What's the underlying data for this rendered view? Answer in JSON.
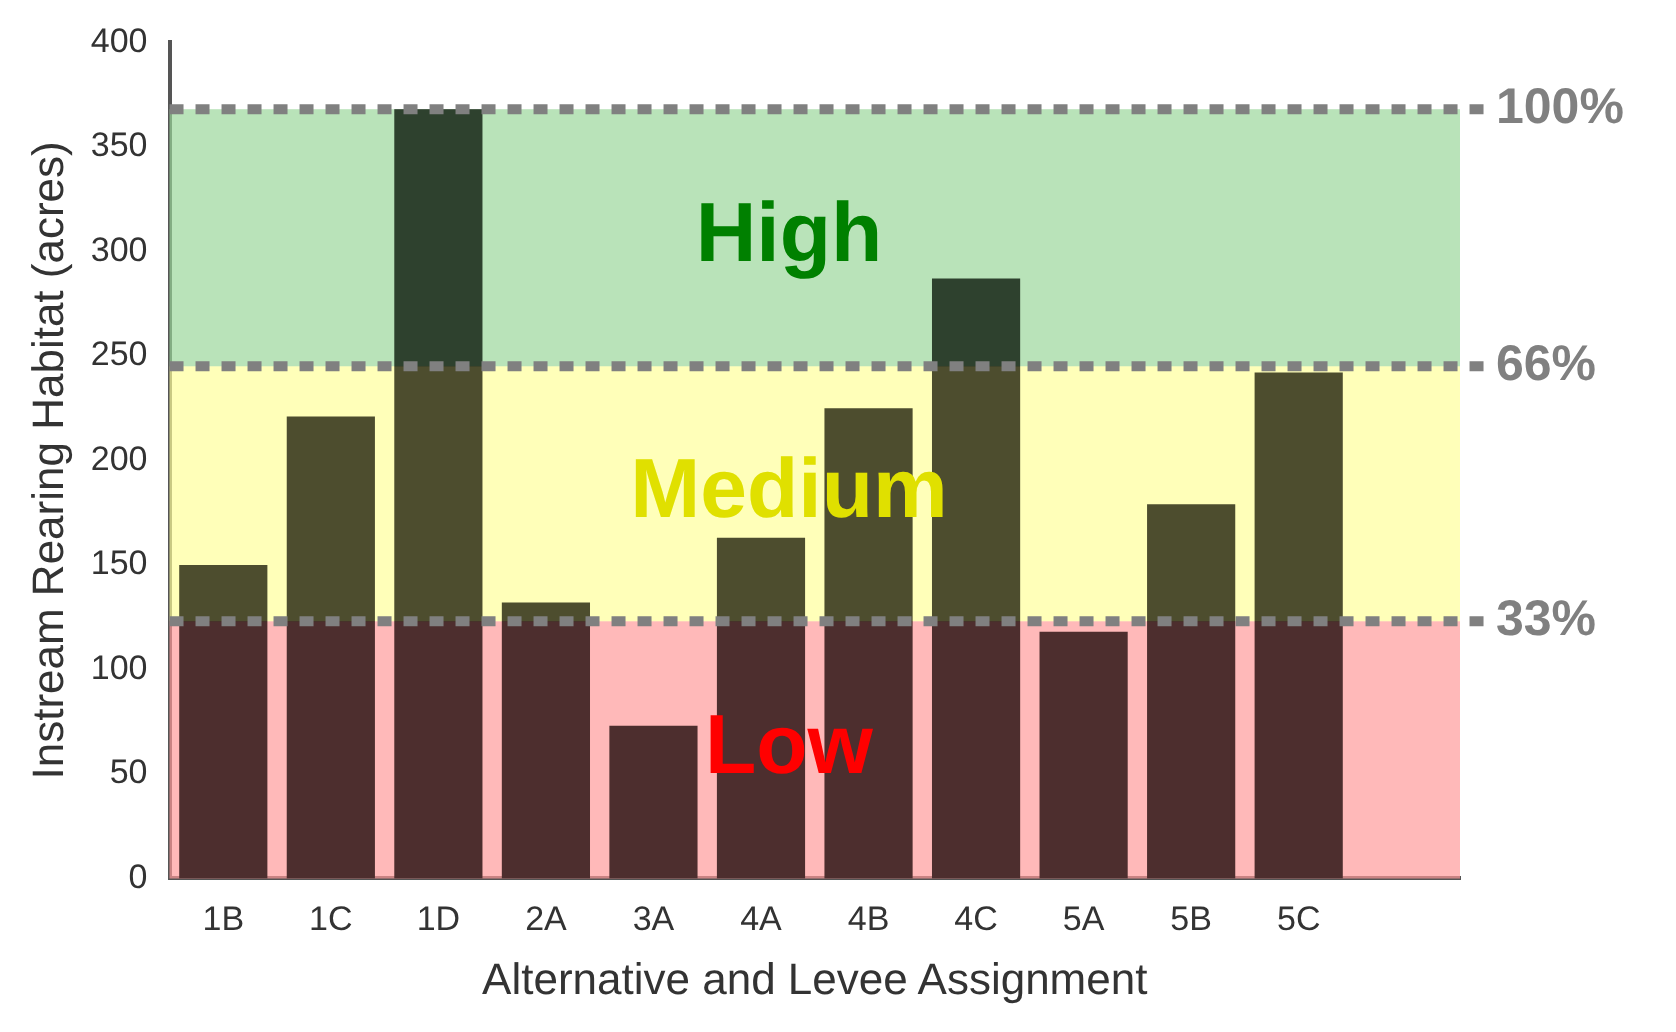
{
  "chart_data": {
    "type": "bar",
    "xlabel": "Alternative and Levee Assignment",
    "ylabel": "Instream Rearing Habitat (acres)",
    "categories": [
      "1B",
      "1C",
      "1D",
      "2A",
      "3A",
      "4A",
      "4B",
      "4C",
      "5A",
      "5B",
      "5C",
      null
    ],
    "values": [
      150,
      221,
      368,
      132,
      73,
      163,
      225,
      287,
      118,
      179,
      242,
      null
    ],
    "color": "#000000",
    "ylim": [
      0,
      400
    ],
    "yticks": [
      0,
      50,
      100,
      150,
      200,
      250,
      300,
      350,
      400
    ],
    "grid": false,
    "legend": false,
    "bands": [
      {
        "axis": "y",
        "from": 0,
        "to": 123,
        "label": "Low",
        "color": "#ff9999"
      },
      {
        "axis": "y",
        "from": 123,
        "to": 245,
        "label": "Medium",
        "color": "#ffff99"
      },
      {
        "axis": "y",
        "from": 245,
        "to": 368,
        "label": "High",
        "color": "#99d699"
      }
    ],
    "ref_lines": [
      {
        "axis": "y",
        "value": 368,
        "color": "#808080",
        "line_style": "dashed"
      },
      {
        "axis": "y",
        "value": 245,
        "color": "#808080",
        "line_style": "dashed"
      },
      {
        "axis": "y",
        "value": 123,
        "color": "#808080",
        "line_style": "dashed"
      }
    ],
    "annotations": [
      "100%",
      "66%",
      "33%"
    ]
  }
}
